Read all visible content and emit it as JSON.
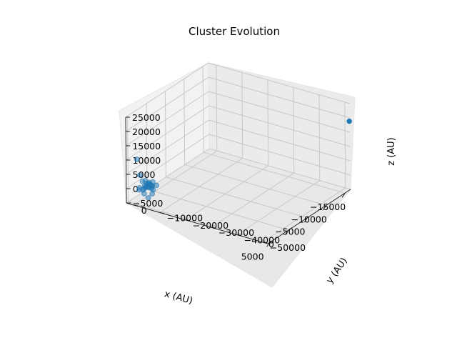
{
  "chart_data": {
    "type": "scatter",
    "title": "Cluster Evolution",
    "xlabel": "x (AU)",
    "ylabel": "y (AU)",
    "zlabel": "z (AU)",
    "projection": "3d",
    "grid": true,
    "marker_color": "#1f77b4",
    "x_ticks": [
      -15000,
      -10000,
      -5000,
      0,
      5000
    ],
    "x_tick_labels": [
      "−15000",
      "−10000",
      "−5000",
      "0",
      "5000"
    ],
    "y_ticks": [
      -50000,
      -40000,
      -30000,
      -20000,
      -10000,
      0
    ],
    "y_tick_labels": [
      "−50000",
      "−40000",
      "−30000",
      "−20000",
      "−10000",
      "0"
    ],
    "z_ticks": [
      -5000,
      0,
      5000,
      10000,
      15000,
      20000,
      25000
    ],
    "z_tick_labels": [
      "−5000",
      "0",
      "5000",
      "10000",
      "15000",
      "20000",
      "25000"
    ],
    "xlim": [
      -16500,
      5500
    ],
    "ylim": [
      -52000,
      3000
    ],
    "zlim": [
      -5000,
      25000
    ],
    "points": [
      {
        "x": -16300,
        "y": -52000,
        "z": 19000
      },
      {
        "x": 2400,
        "y": -2000,
        "z": 0
      },
      {
        "x": 2600,
        "y": -1500,
        "z": 300
      },
      {
        "x": 2800,
        "y": -1000,
        "z": 600
      },
      {
        "x": 3000,
        "y": -500,
        "z": -200
      },
      {
        "x": 2500,
        "y": -2500,
        "z": -500
      },
      {
        "x": 2700,
        "y": -3000,
        "z": 200
      },
      {
        "x": 2900,
        "y": -1800,
        "z": 800
      },
      {
        "x": 3100,
        "y": -2200,
        "z": -300
      },
      {
        "x": 2300,
        "y": -1200,
        "z": 500
      },
      {
        "x": 2600,
        "y": -800,
        "z": -800
      },
      {
        "x": 3300,
        "y": -1500,
        "z": 100
      },
      {
        "x": 3500,
        "y": -2600,
        "z": 400
      },
      {
        "x": 2800,
        "y": -3500,
        "z": -1000
      },
      {
        "x": 3200,
        "y": -3200,
        "z": 900
      },
      {
        "x": 2400,
        "y": -2800,
        "z": 1200
      },
      {
        "x": 2900,
        "y": -600,
        "z": 1500
      },
      {
        "x": 3700,
        "y": -1200,
        "z": -600
      },
      {
        "x": 3900,
        "y": -2000,
        "z": 300
      },
      {
        "x": 4200,
        "y": -1500,
        "z": -400
      },
      {
        "x": 2200,
        "y": -2000,
        "z": -1500
      },
      {
        "x": 3400,
        "y": -4000,
        "z": -1800
      },
      {
        "x": 4500,
        "y": -2500,
        "z": -1200
      },
      {
        "x": 4800,
        "y": -1000,
        "z": 0
      },
      {
        "x": 2600,
        "y": -4500,
        "z": 600
      },
      {
        "x": 3600,
        "y": -500,
        "z": 1800
      },
      {
        "x": 5200,
        "y": -800,
        "z": 11000
      },
      {
        "x": 5000,
        "y": -1600,
        "z": 5500
      },
      {
        "x": 5800,
        "y": -2600,
        "z": 2000
      },
      {
        "x": 4300,
        "y": -3800,
        "z": -2500
      }
    ]
  }
}
